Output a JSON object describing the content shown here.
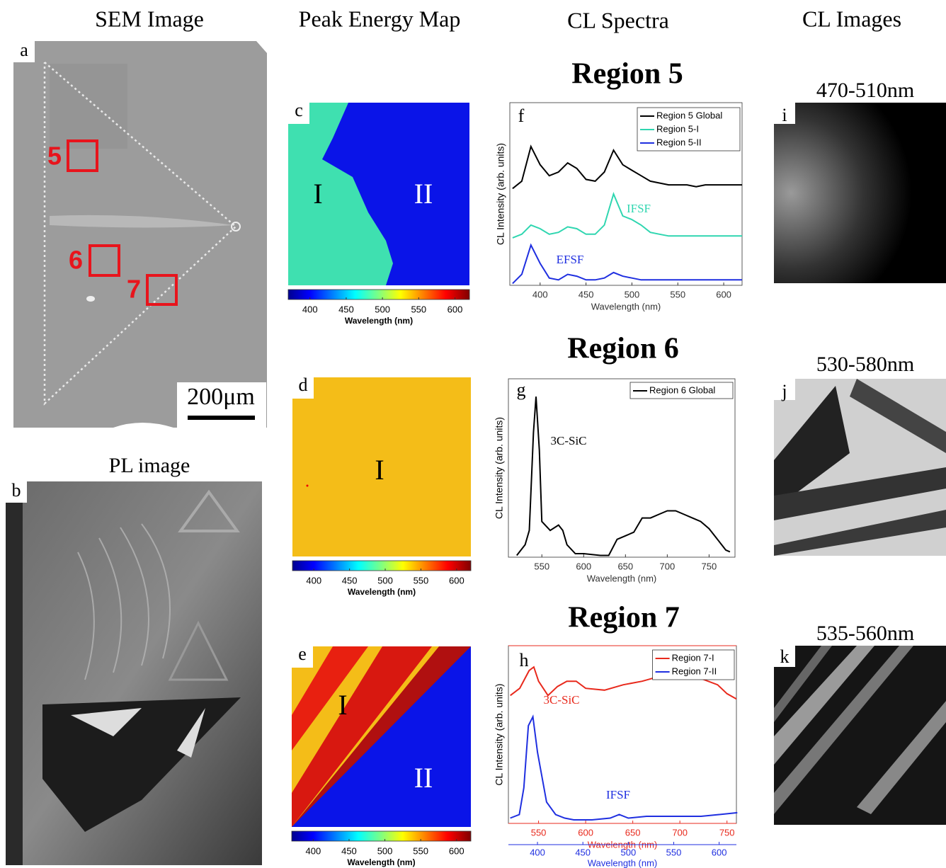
{
  "headers": [
    "SEM Image",
    "Peak Energy Map",
    "CL Spectra",
    "CL Images"
  ],
  "panel_labels": [
    "a",
    "b",
    "c",
    "d",
    "e",
    "f",
    "g",
    "h",
    "i",
    "j",
    "k"
  ],
  "sem": {
    "scale_bar": "200μm",
    "regions": [
      "5",
      "6",
      "7"
    ]
  },
  "pl_title": "PL image",
  "maps": [
    {
      "labels": [
        "I",
        "II"
      ]
    },
    {
      "labels": [
        "I"
      ]
    },
    {
      "labels": [
        "I",
        "II"
      ]
    }
  ],
  "colorbars": [
    {
      "label": "Wavelength (nm)",
      "lim": [
        370,
        620
      ],
      "ticks": [
        400,
        450,
        500,
        550,
        600
      ]
    },
    {
      "label": "Wavelength (nm)",
      "lim": [
        370,
        620
      ],
      "ticks": [
        400,
        450,
        500,
        550,
        600
      ]
    },
    {
      "label": "Wavelength (nm)",
      "lim": [
        370,
        620
      ],
      "ticks": [
        400,
        450,
        500,
        550,
        600
      ]
    }
  ],
  "cl_images": [
    "470-510nm",
    "530-580nm",
    "535-560nm"
  ],
  "chart_data": [
    {
      "type": "line",
      "title": "Region 5",
      "xlabel": "Wavelength  (nm)",
      "ylabel": "CL Intensity (arb. units)",
      "xlim": [
        367,
        620
      ],
      "xticks": [
        400,
        450,
        500,
        550,
        600
      ],
      "ylim": [
        0,
        1
      ],
      "annotations": [
        "IFSF",
        "EFSF"
      ],
      "series": [
        {
          "name": "Region 5 Global",
          "color": "#000000",
          "x": [
            370,
            380,
            390,
            400,
            410,
            420,
            430,
            440,
            450,
            460,
            470,
            480,
            490,
            500,
            510,
            520,
            530,
            540,
            550,
            560,
            570,
            580,
            590,
            600,
            610,
            620
          ],
          "values": [
            0.53,
            0.57,
            0.76,
            0.66,
            0.6,
            0.62,
            0.67,
            0.64,
            0.58,
            0.57,
            0.62,
            0.74,
            0.66,
            0.63,
            0.6,
            0.57,
            0.56,
            0.55,
            0.55,
            0.55,
            0.54,
            0.55,
            0.55,
            0.55,
            0.55,
            0.55
          ]
        },
        {
          "name": "Region 5-I",
          "color": "#2fd6b0",
          "x": [
            370,
            380,
            390,
            400,
            410,
            420,
            430,
            440,
            450,
            460,
            470,
            480,
            490,
            500,
            510,
            520,
            530,
            540,
            550,
            560,
            570,
            580,
            590,
            600,
            610,
            620
          ],
          "values": [
            0.26,
            0.28,
            0.33,
            0.31,
            0.28,
            0.29,
            0.32,
            0.31,
            0.28,
            0.28,
            0.33,
            0.5,
            0.38,
            0.36,
            0.33,
            0.29,
            0.28,
            0.27,
            0.27,
            0.27,
            0.27,
            0.27,
            0.27,
            0.27,
            0.27,
            0.27
          ]
        },
        {
          "name": "Region 5-II",
          "color": "#1f2fe0",
          "x": [
            370,
            380,
            390,
            400,
            410,
            420,
            430,
            440,
            450,
            460,
            470,
            480,
            490,
            500,
            510,
            520,
            530,
            540,
            550,
            560,
            570,
            580,
            590,
            600,
            610,
            620
          ],
          "values": [
            0.01,
            0.06,
            0.22,
            0.12,
            0.04,
            0.03,
            0.06,
            0.05,
            0.03,
            0.03,
            0.04,
            0.07,
            0.05,
            0.04,
            0.03,
            0.03,
            0.03,
            0.03,
            0.03,
            0.03,
            0.03,
            0.03,
            0.03,
            0.03,
            0.03,
            0.03
          ]
        }
      ]
    },
    {
      "type": "line",
      "title": "Region 6",
      "xlabel": "Wavelength  (nm)",
      "ylabel": "CL Intensity (arb. units)",
      "xlim": [
        510,
        781
      ],
      "xticks": [
        550,
        600,
        650,
        700,
        750
      ],
      "ylim": [
        0,
        1
      ],
      "annotations": [
        "3C-SiC"
      ],
      "series": [
        {
          "name": "Region 6 Global",
          "color": "#000000",
          "x": [
            520,
            530,
            535,
            540,
            543,
            547,
            550,
            560,
            570,
            575,
            580,
            590,
            600,
            620,
            630,
            640,
            650,
            660,
            670,
            680,
            690,
            700,
            710,
            720,
            730,
            740,
            750,
            760,
            770,
            775
          ],
          "values": [
            0.01,
            0.07,
            0.15,
            0.7,
            0.9,
            0.6,
            0.2,
            0.15,
            0.18,
            0.15,
            0.07,
            0.02,
            0.02,
            0.01,
            0.01,
            0.1,
            0.12,
            0.14,
            0.22,
            0.22,
            0.24,
            0.26,
            0.26,
            0.24,
            0.22,
            0.2,
            0.16,
            0.1,
            0.04,
            0.03
          ]
        }
      ]
    },
    {
      "type": "line",
      "title": "Region 7",
      "xlabel": "Wavelength  (nm)",
      "x2label": "Wavelength  (nm)",
      "ylabel": "CL Intensity (arb. units)",
      "xlim": [
        518,
        760
      ],
      "xticks": [
        550,
        600,
        650,
        700,
        750
      ],
      "x2lim": [
        368,
        619
      ],
      "x2ticks": [
        400,
        450,
        500,
        550,
        600
      ],
      "ylim": [
        0,
        1
      ],
      "annotations": [
        "3C-SiC",
        "IFSF"
      ],
      "series": [
        {
          "name": "Region 7-I",
          "color": "#e8291c",
          "x": [
            520,
            530,
            540,
            545,
            550,
            560,
            570,
            580,
            590,
            600,
            620,
            640,
            660,
            680,
            700,
            720,
            740,
            750,
            760
          ],
          "values": [
            0.72,
            0.76,
            0.86,
            0.88,
            0.8,
            0.72,
            0.77,
            0.8,
            0.8,
            0.76,
            0.75,
            0.78,
            0.8,
            0.83,
            0.84,
            0.82,
            0.78,
            0.73,
            0.7
          ]
        },
        {
          "name": "Region 7-II",
          "color": "#1f2fe0",
          "axis": "x2",
          "x": [
            370,
            380,
            385,
            390,
            395,
            400,
            410,
            420,
            430,
            440,
            460,
            480,
            490,
            500,
            520,
            540,
            560,
            580,
            600,
            620
          ],
          "values": [
            0.03,
            0.05,
            0.2,
            0.55,
            0.6,
            0.4,
            0.12,
            0.05,
            0.03,
            0.02,
            0.02,
            0.03,
            0.05,
            0.03,
            0.04,
            0.04,
            0.04,
            0.04,
            0.05,
            0.06
          ]
        }
      ]
    }
  ]
}
